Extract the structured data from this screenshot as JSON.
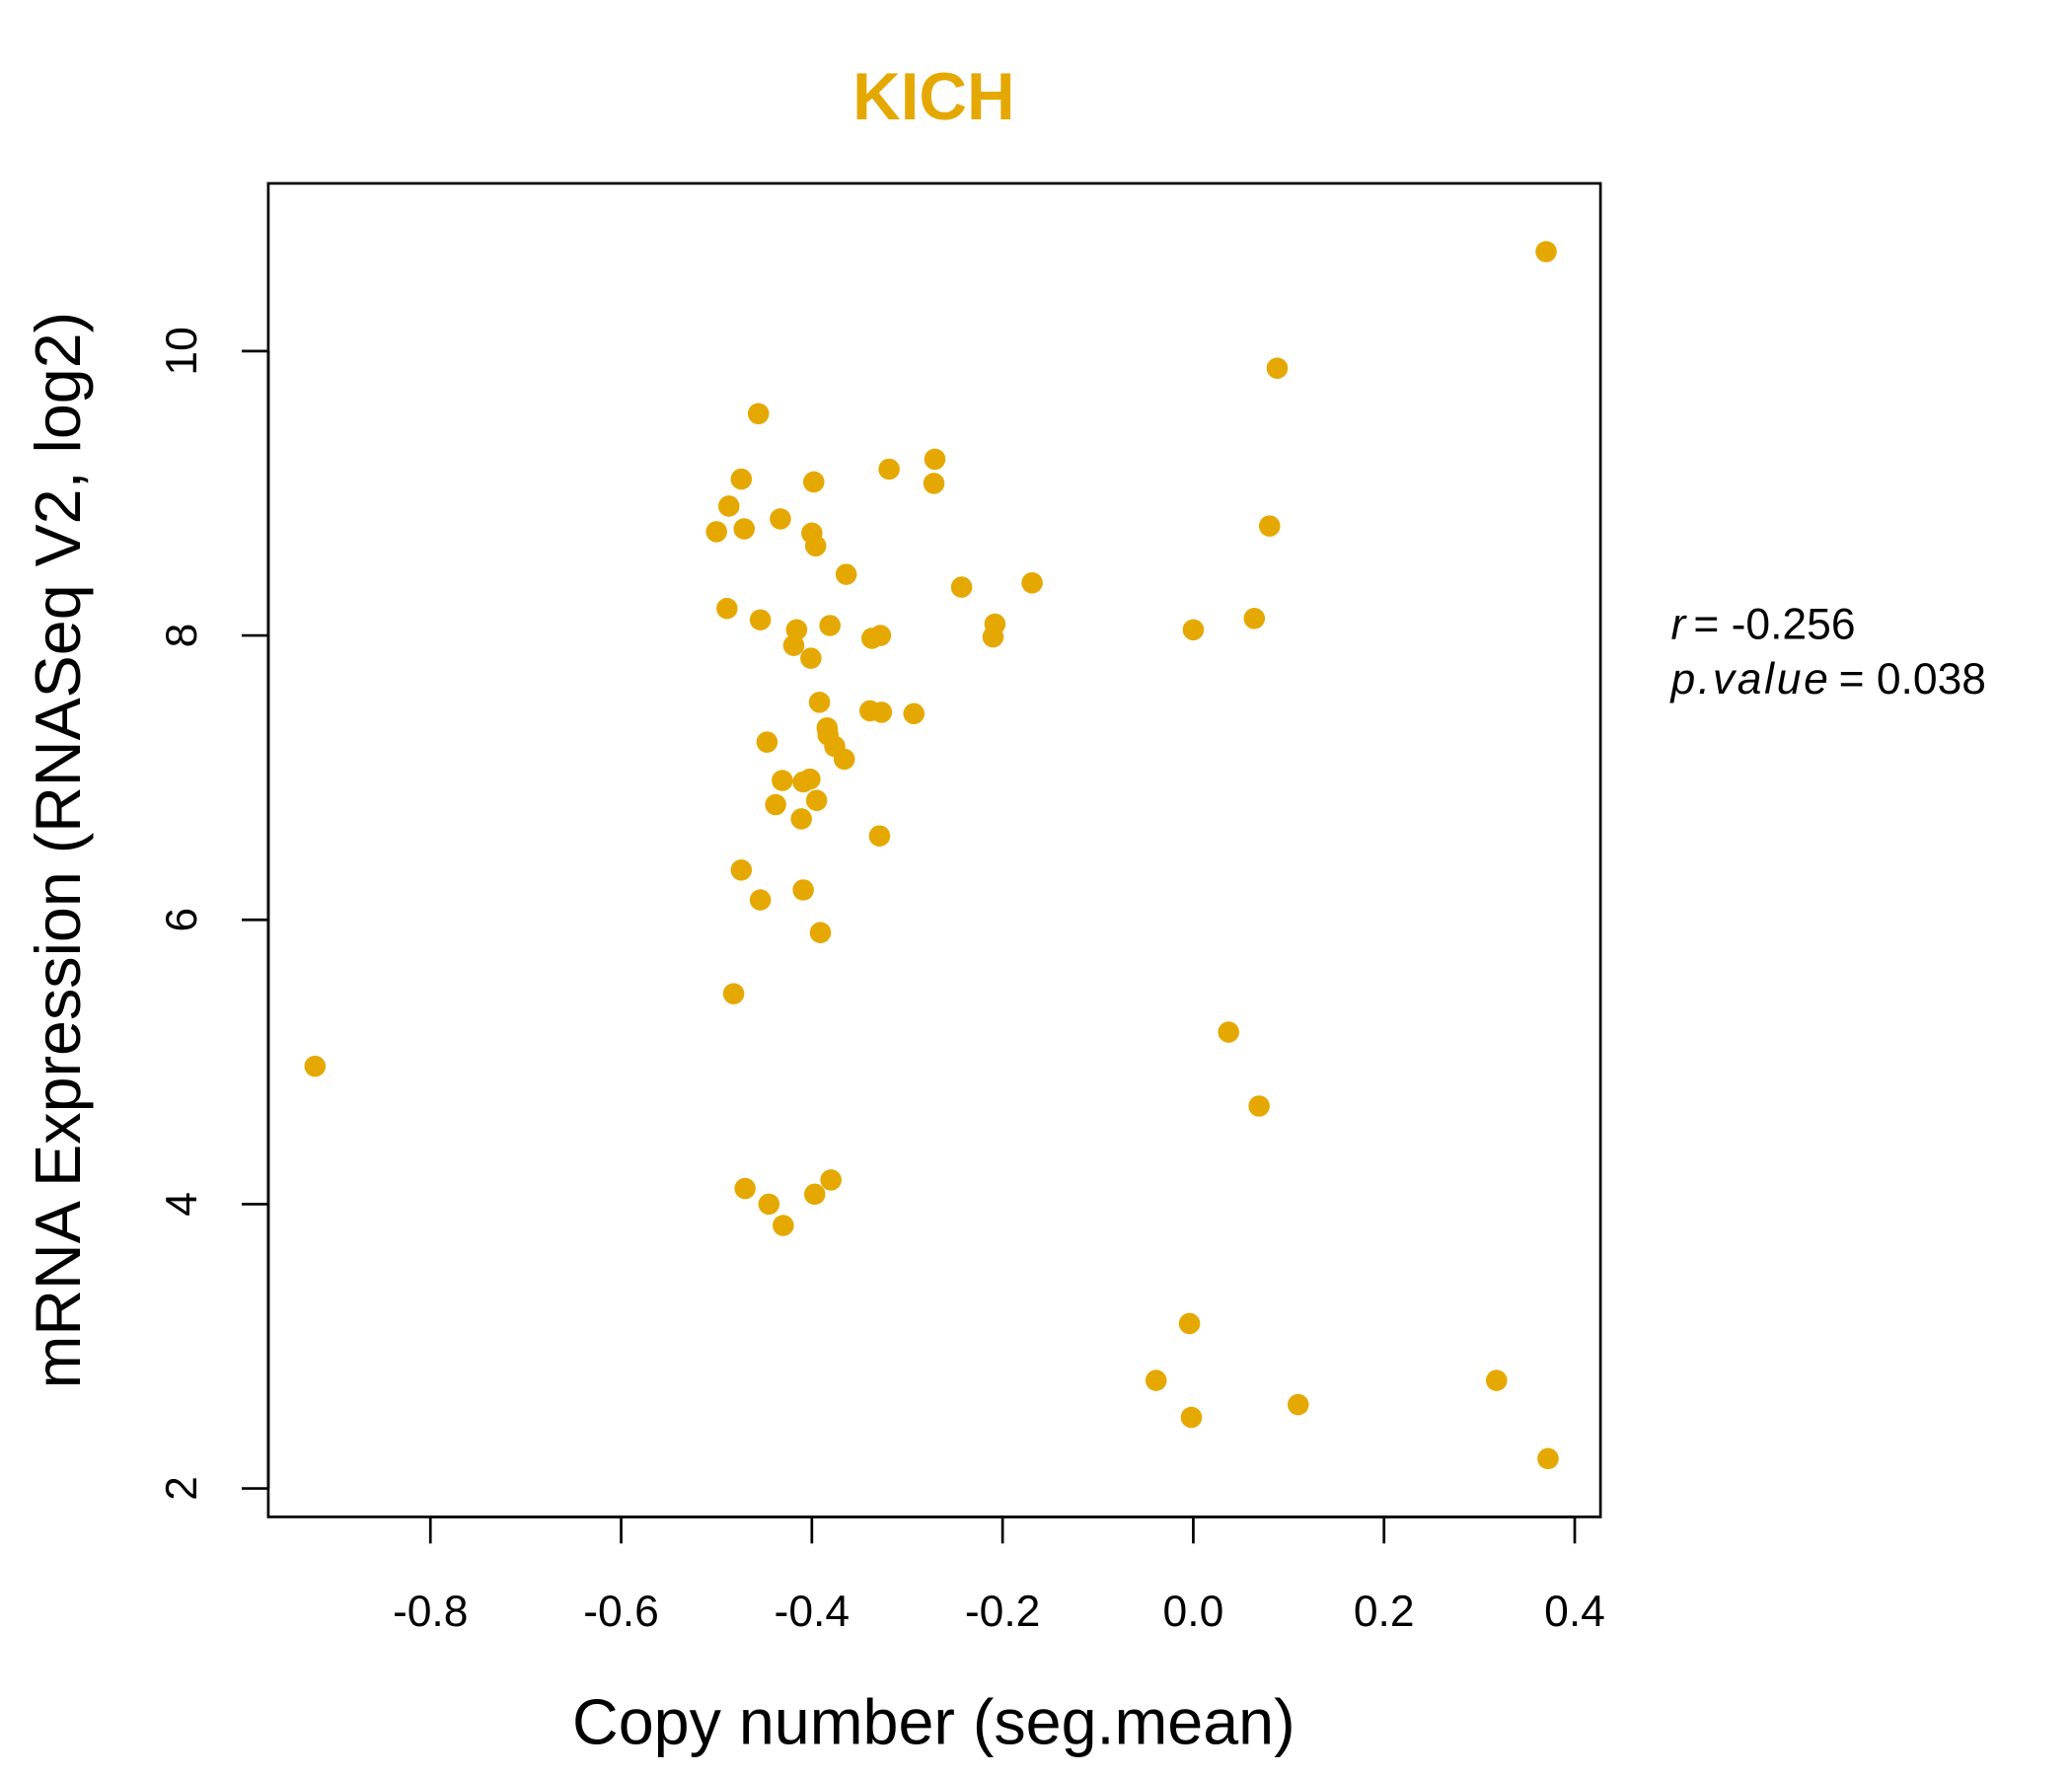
{
  "chart_data": {
    "type": "scatter",
    "title": "KICH",
    "xlabel": "Copy number (seg.mean)",
    "ylabel": "mRNA Expression (RNASeq V2, log2)",
    "xlim": [
      -0.97,
      0.427
    ],
    "ylim": [
      1.8,
      11.18
    ],
    "xticks": [
      -0.8,
      -0.6,
      -0.4,
      -0.2,
      0.0,
      0.2,
      0.4
    ],
    "xtick_labels": [
      "-0.8",
      "-0.6",
      "-0.4",
      "-0.2",
      "0.0",
      "0.2",
      "0.4"
    ],
    "yticks": [
      2,
      4,
      6,
      8,
      10
    ],
    "ytick_labels": [
      "2",
      "4",
      "6",
      "8",
      "10"
    ],
    "grid": false,
    "color": "#E5A800",
    "annotation": {
      "r_label": "r",
      "r_value": "= -0.256",
      "p_label": "p.value",
      "p_value": "= 0.038"
    },
    "points": [
      [
        -0.921,
        4.97
      ],
      [
        0.37,
        10.7
      ],
      [
        0.088,
        9.88
      ],
      [
        0.08,
        8.77
      ],
      [
        0.064,
        8.12
      ],
      [
        0.0,
        8.04
      ],
      [
        0.037,
        5.21
      ],
      [
        0.069,
        4.69
      ],
      [
        -0.004,
        3.16
      ],
      [
        -0.039,
        2.76
      ],
      [
        -0.002,
        2.5
      ],
      [
        0.11,
        2.59
      ],
      [
        0.318,
        2.76
      ],
      [
        0.372,
        2.21
      ],
      [
        -0.456,
        9.56
      ],
      [
        -0.474,
        9.1
      ],
      [
        -0.487,
        8.91
      ],
      [
        -0.5,
        8.73
      ],
      [
        -0.471,
        8.75
      ],
      [
        -0.433,
        8.82
      ],
      [
        -0.398,
        9.08
      ],
      [
        -0.4,
        8.72
      ],
      [
        -0.396,
        8.63
      ],
      [
        -0.319,
        9.17
      ],
      [
        -0.271,
        9.24
      ],
      [
        -0.272,
        9.07
      ],
      [
        -0.364,
        8.43
      ],
      [
        -0.243,
        8.34
      ],
      [
        -0.169,
        8.37
      ],
      [
        -0.489,
        8.19
      ],
      [
        -0.454,
        8.11
      ],
      [
        -0.416,
        8.04
      ],
      [
        -0.381,
        8.07
      ],
      [
        -0.419,
        7.93
      ],
      [
        -0.401,
        7.84
      ],
      [
        -0.337,
        7.98
      ],
      [
        -0.328,
        8.0
      ],
      [
        -0.208,
        8.08
      ],
      [
        -0.21,
        7.99
      ],
      [
        -0.392,
        7.53
      ],
      [
        -0.339,
        7.47
      ],
      [
        -0.327,
        7.46
      ],
      [
        -0.293,
        7.45
      ],
      [
        -0.384,
        7.35
      ],
      [
        -0.383,
        7.3
      ],
      [
        -0.376,
        7.22
      ],
      [
        -0.366,
        7.13
      ],
      [
        -0.447,
        7.25
      ],
      [
        -0.431,
        6.98
      ],
      [
        -0.409,
        6.97
      ],
      [
        -0.402,
        6.99
      ],
      [
        -0.438,
        6.81
      ],
      [
        -0.395,
        6.84
      ],
      [
        -0.411,
        6.71
      ],
      [
        -0.329,
        6.59
      ],
      [
        -0.474,
        6.35
      ],
      [
        -0.454,
        6.14
      ],
      [
        -0.409,
        6.21
      ],
      [
        -0.391,
        5.91
      ],
      [
        -0.482,
        5.48
      ],
      [
        -0.47,
        4.11
      ],
      [
        -0.445,
        4.0
      ],
      [
        -0.38,
        4.17
      ],
      [
        -0.397,
        4.07
      ],
      [
        -0.43,
        3.85
      ]
    ]
  }
}
